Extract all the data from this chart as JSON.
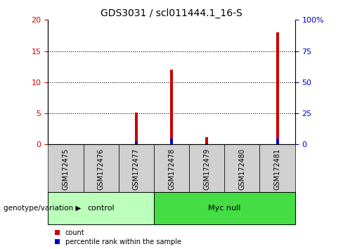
{
  "title": "GDS3031 / scl011444.1_16-S",
  "samples": [
    "GSM172475",
    "GSM172476",
    "GSM172477",
    "GSM172478",
    "GSM172479",
    "GSM172480",
    "GSM172481"
  ],
  "count_values": [
    0,
    0,
    5.1,
    12.0,
    1.2,
    0,
    18.0
  ],
  "percentile_values": [
    0,
    0,
    2.2,
    4.8,
    0.5,
    0,
    4.8
  ],
  "count_color": "#cc0000",
  "percentile_color": "#0000cc",
  "left_ylim": [
    0,
    20
  ],
  "right_ylim": [
    0,
    100
  ],
  "left_yticks": [
    0,
    5,
    10,
    15,
    20
  ],
  "right_yticks": [
    0,
    25,
    50,
    75,
    100
  ],
  "right_yticklabels": [
    "0",
    "25",
    "50",
    "75",
    "100%"
  ],
  "gridlines": [
    5,
    10,
    15
  ],
  "groups": [
    {
      "label": "control",
      "indices": [
        0,
        1,
        2
      ],
      "color": "#bbffbb"
    },
    {
      "label": "Myc null",
      "indices": [
        3,
        4,
        5,
        6
      ],
      "color": "#44dd44"
    }
  ],
  "group_label": "genotype/variation",
  "legend_count": "count",
  "legend_percentile": "percentile rank within the sample",
  "bar_width": 0.08,
  "bg_color": "#ffffff",
  "tick_area_bg": "#d0d0d0",
  "title_fontsize": 10,
  "tick_fontsize": 8,
  "left_tick_color": "#cc0000",
  "right_tick_color": "#0000cc"
}
